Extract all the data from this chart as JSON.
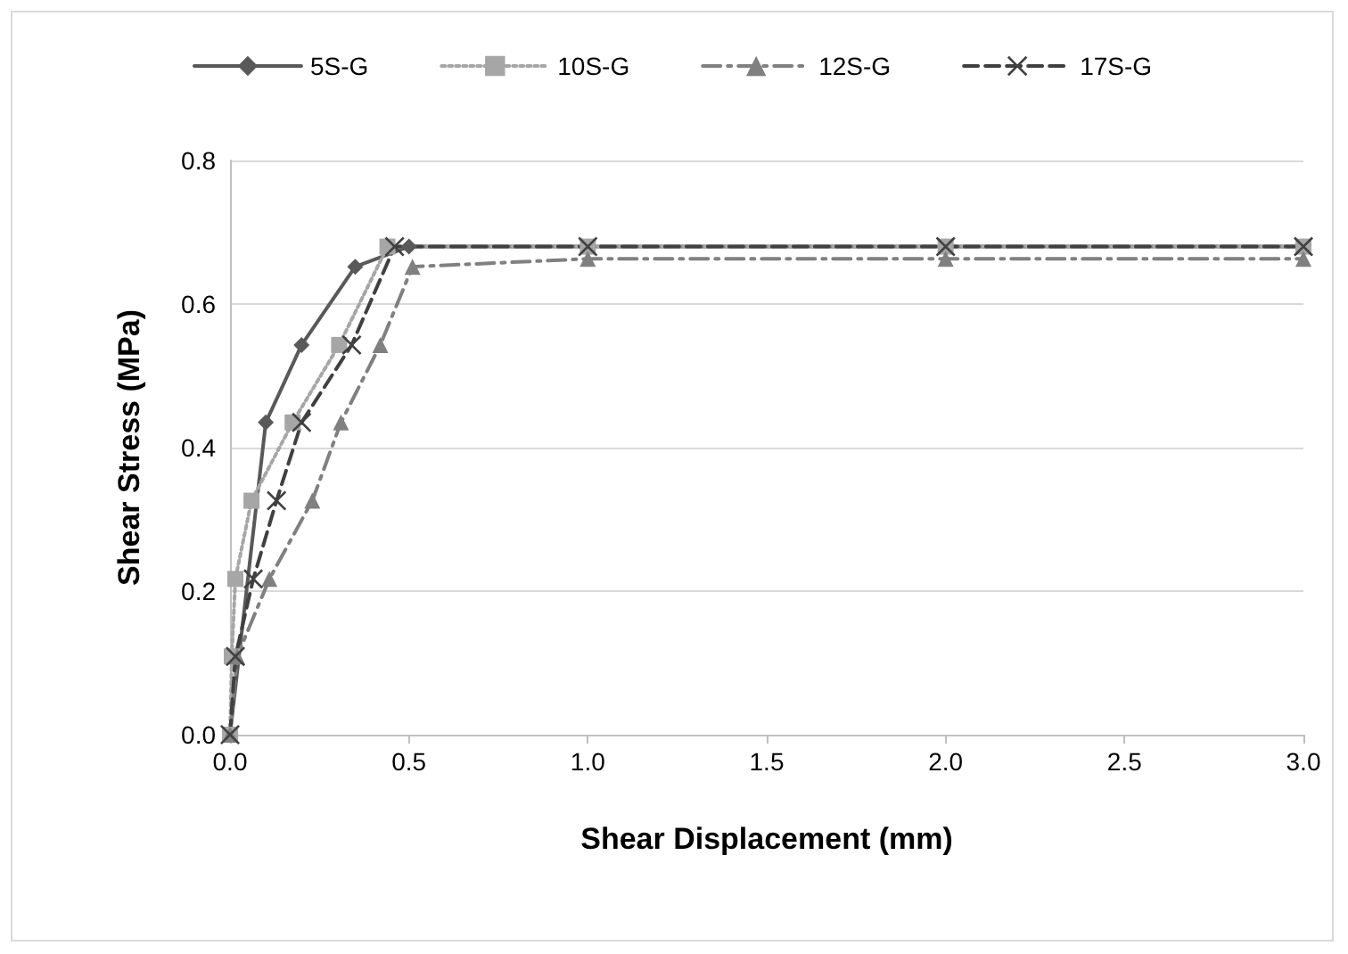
{
  "chart_data": {
    "type": "line",
    "xlabel": "Shear Displacement (mm)",
    "ylabel": "Shear Stress (MPa)",
    "xlim": [
      0,
      3
    ],
    "xticks": [
      {
        "value": 0,
        "label": "0.0"
      },
      {
        "value": 0.5,
        "label": "0.5"
      },
      {
        "value": 1,
        "label": "1.0"
      },
      {
        "value": 1.5,
        "label": "1.5"
      },
      {
        "value": 2,
        "label": "2.0"
      },
      {
        "value": 2.5,
        "label": "2.5"
      },
      {
        "value": 3,
        "label": "3.0"
      }
    ],
    "ylim": [
      0,
      0.8
    ],
    "yticks": [
      {
        "value": 0,
        "label": "0.0"
      },
      {
        "value": 0.2,
        "label": "0.2"
      },
      {
        "value": 0.4,
        "label": "0.4"
      },
      {
        "value": 0.6,
        "label": "0.6"
      },
      {
        "value": 0.8,
        "label": "0.8"
      }
    ],
    "grid": "y",
    "legend": "top",
    "series": [
      {
        "name": "5S-G",
        "color": "#595959",
        "marker": "diamond",
        "line_style": "solid",
        "x": [
          0,
          0.1,
          0.2,
          0.35,
          0.5,
          1,
          2,
          3
        ],
        "values": [
          0,
          0.435,
          0.543,
          0.652,
          0.68,
          0.68,
          0.68,
          0.68
        ]
      },
      {
        "name": "10S-G",
        "color": "#a6a6a6",
        "marker": "square",
        "line_style": "dotted",
        "x": [
          0,
          0.005,
          0.015,
          0.06,
          0.175,
          0.305,
          0.44,
          1,
          2,
          3
        ],
        "values": [
          0,
          0.109,
          0.217,
          0.326,
          0.435,
          0.543,
          0.68,
          0.68,
          0.68,
          0.68
        ]
      },
      {
        "name": "12S-G",
        "color": "#808080",
        "marker": "triangle",
        "line_style": "dashdot",
        "x": [
          0,
          0.02,
          0.11,
          0.23,
          0.31,
          0.42,
          0.51,
          1,
          2,
          3
        ],
        "values": [
          0,
          0.109,
          0.217,
          0.326,
          0.435,
          0.543,
          0.652,
          0.663,
          0.663,
          0.663
        ]
      },
      {
        "name": "17S-G",
        "color": "#404040",
        "marker": "cross",
        "line_style": "dashed",
        "x": [
          0,
          0.015,
          0.065,
          0.13,
          0.2,
          0.34,
          0.46,
          1,
          2,
          3
        ],
        "values": [
          0,
          0.109,
          0.217,
          0.326,
          0.435,
          0.543,
          0.68,
          0.68,
          0.68,
          0.68
        ]
      }
    ]
  }
}
